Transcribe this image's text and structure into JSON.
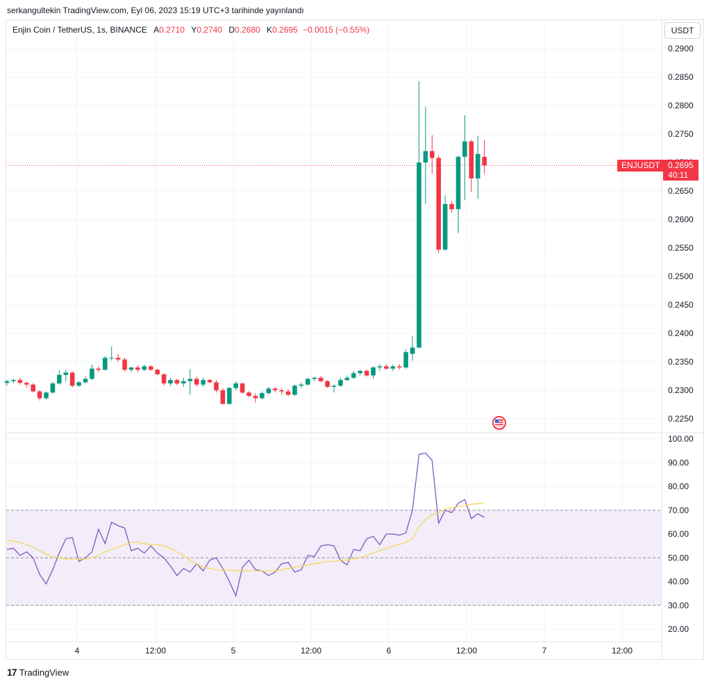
{
  "header": {
    "published": "serkangultekin TradingView.com, Eyl 06, 2023 15:19 UTC+3 tarihinde yayınlandı"
  },
  "legend": {
    "symbol": "Enjin Coin / TetherUS, 1s, BINANCE",
    "a_label": "A",
    "a_value": "0.2710",
    "y_label": "Y",
    "y_value": "0.2740",
    "d_label": "D",
    "d_value": "0.2680",
    "k_label": "K",
    "k_value": "0.2695",
    "change": "−0.0015 (−0.55%)"
  },
  "currency_button": "USDT",
  "price_tag": {
    "symbol": "ENJUSDT",
    "price": "0.2695",
    "countdown": "40:11"
  },
  "footer": {
    "brand": "TradingView",
    "mark": "17"
  },
  "colors": {
    "up": "#089981",
    "down": "#f23645",
    "rsi": "#7e57c2",
    "rsi_ma": "#f7d95c",
    "band": "#ede7f6"
  },
  "chart_data": [
    {
      "type": "candlestick",
      "title": "Enjin Coin / TetherUS, 1s, BINANCE",
      "ylim": [
        0.2225,
        0.2925
      ],
      "y_ticks": [
        "0.2900",
        "0.2850",
        "0.2800",
        "0.2750",
        "0.2700",
        "0.2650",
        "0.2600",
        "0.2550",
        "0.2500",
        "0.2450",
        "0.2400",
        "0.2350",
        "0.2300",
        "0.2250"
      ],
      "x_ticks": [
        "4",
        "12:00",
        "5",
        "12:00",
        "6",
        "12:00",
        "7",
        "12:00"
      ],
      "last_price": 0.2695,
      "candles": [
        {
          "o": 0.2313,
          "h": 0.2318,
          "l": 0.2308,
          "c": 0.2316
        },
        {
          "o": 0.2316,
          "h": 0.232,
          "l": 0.2312,
          "c": 0.2318
        },
        {
          "o": 0.2318,
          "h": 0.2322,
          "l": 0.231,
          "c": 0.2313
        },
        {
          "o": 0.2313,
          "h": 0.2316,
          "l": 0.2305,
          "c": 0.231
        },
        {
          "o": 0.231,
          "h": 0.2312,
          "l": 0.2296,
          "c": 0.2298
        },
        {
          "o": 0.2298,
          "h": 0.23,
          "l": 0.2282,
          "c": 0.2286
        },
        {
          "o": 0.2286,
          "h": 0.2298,
          "l": 0.2284,
          "c": 0.2296
        },
        {
          "o": 0.2296,
          "h": 0.2315,
          "l": 0.2294,
          "c": 0.2312
        },
        {
          "o": 0.2312,
          "h": 0.2335,
          "l": 0.231,
          "c": 0.2327
        },
        {
          "o": 0.2327,
          "h": 0.2336,
          "l": 0.2315,
          "c": 0.2331
        },
        {
          "o": 0.2331,
          "h": 0.2333,
          "l": 0.2305,
          "c": 0.2308
        },
        {
          "o": 0.2308,
          "h": 0.2316,
          "l": 0.2306,
          "c": 0.2314
        },
        {
          "o": 0.2314,
          "h": 0.2325,
          "l": 0.2312,
          "c": 0.232
        },
        {
          "o": 0.232,
          "h": 0.2345,
          "l": 0.2318,
          "c": 0.2338
        },
        {
          "o": 0.2338,
          "h": 0.2342,
          "l": 0.2332,
          "c": 0.2336
        },
        {
          "o": 0.2336,
          "h": 0.236,
          "l": 0.2335,
          "c": 0.2357
        },
        {
          "o": 0.2357,
          "h": 0.2377,
          "l": 0.2352,
          "c": 0.2357
        },
        {
          "o": 0.2357,
          "h": 0.2364,
          "l": 0.235,
          "c": 0.2354
        },
        {
          "o": 0.2354,
          "h": 0.2357,
          "l": 0.2333,
          "c": 0.2336
        },
        {
          "o": 0.2336,
          "h": 0.2341,
          "l": 0.2332,
          "c": 0.234
        },
        {
          "o": 0.234,
          "h": 0.2344,
          "l": 0.2332,
          "c": 0.2336
        },
        {
          "o": 0.2336,
          "h": 0.2345,
          "l": 0.2334,
          "c": 0.2342
        },
        {
          "o": 0.2342,
          "h": 0.2344,
          "l": 0.2334,
          "c": 0.2336
        },
        {
          "o": 0.2336,
          "h": 0.2338,
          "l": 0.2326,
          "c": 0.2328
        },
        {
          "o": 0.2328,
          "h": 0.233,
          "l": 0.2308,
          "c": 0.2312
        },
        {
          "o": 0.2312,
          "h": 0.2322,
          "l": 0.2308,
          "c": 0.2318
        },
        {
          "o": 0.2318,
          "h": 0.232,
          "l": 0.2309,
          "c": 0.2312
        },
        {
          "o": 0.2312,
          "h": 0.2322,
          "l": 0.2306,
          "c": 0.2316
        },
        {
          "o": 0.2316,
          "h": 0.2337,
          "l": 0.2292,
          "c": 0.232
        },
        {
          "o": 0.232,
          "h": 0.2324,
          "l": 0.2306,
          "c": 0.231
        },
        {
          "o": 0.231,
          "h": 0.2322,
          "l": 0.2306,
          "c": 0.2318
        },
        {
          "o": 0.2318,
          "h": 0.232,
          "l": 0.2312,
          "c": 0.2314
        },
        {
          "o": 0.2314,
          "h": 0.2318,
          "l": 0.2296,
          "c": 0.23
        },
        {
          "o": 0.23,
          "h": 0.2304,
          "l": 0.2275,
          "c": 0.2276
        },
        {
          "o": 0.2276,
          "h": 0.2306,
          "l": 0.2275,
          "c": 0.2304
        },
        {
          "o": 0.2304,
          "h": 0.2316,
          "l": 0.23,
          "c": 0.2312
        },
        {
          "o": 0.2312,
          "h": 0.2313,
          "l": 0.2294,
          "c": 0.2296
        },
        {
          "o": 0.2296,
          "h": 0.2298,
          "l": 0.2288,
          "c": 0.229
        },
        {
          "o": 0.229,
          "h": 0.2295,
          "l": 0.2278,
          "c": 0.2286
        },
        {
          "o": 0.2286,
          "h": 0.2298,
          "l": 0.2284,
          "c": 0.2295
        },
        {
          "o": 0.2295,
          "h": 0.2306,
          "l": 0.2292,
          "c": 0.2303
        },
        {
          "o": 0.2303,
          "h": 0.2306,
          "l": 0.2296,
          "c": 0.23
        },
        {
          "o": 0.23,
          "h": 0.2304,
          "l": 0.2292,
          "c": 0.2298
        },
        {
          "o": 0.2298,
          "h": 0.2302,
          "l": 0.229,
          "c": 0.2292
        },
        {
          "o": 0.2292,
          "h": 0.231,
          "l": 0.229,
          "c": 0.2308
        },
        {
          "o": 0.2308,
          "h": 0.2314,
          "l": 0.2304,
          "c": 0.231
        },
        {
          "o": 0.231,
          "h": 0.2322,
          "l": 0.2308,
          "c": 0.232
        },
        {
          "o": 0.232,
          "h": 0.2324,
          "l": 0.2316,
          "c": 0.2322
        },
        {
          "o": 0.2322,
          "h": 0.2325,
          "l": 0.2314,
          "c": 0.2316
        },
        {
          "o": 0.2316,
          "h": 0.2318,
          "l": 0.2304,
          "c": 0.2306
        },
        {
          "o": 0.2306,
          "h": 0.231,
          "l": 0.2296,
          "c": 0.2308
        },
        {
          "o": 0.2308,
          "h": 0.2322,
          "l": 0.2306,
          "c": 0.2318
        },
        {
          "o": 0.2318,
          "h": 0.2326,
          "l": 0.2316,
          "c": 0.2322
        },
        {
          "o": 0.2322,
          "h": 0.2334,
          "l": 0.232,
          "c": 0.233
        },
        {
          "o": 0.233,
          "h": 0.2336,
          "l": 0.2326,
          "c": 0.2334
        },
        {
          "o": 0.2334,
          "h": 0.2337,
          "l": 0.2324,
          "c": 0.2326
        },
        {
          "o": 0.2326,
          "h": 0.2342,
          "l": 0.232,
          "c": 0.234
        },
        {
          "o": 0.234,
          "h": 0.2346,
          "l": 0.2334,
          "c": 0.2342
        },
        {
          "o": 0.2342,
          "h": 0.2346,
          "l": 0.2336,
          "c": 0.2338
        },
        {
          "o": 0.2338,
          "h": 0.2345,
          "l": 0.2334,
          "c": 0.2342
        },
        {
          "o": 0.2342,
          "h": 0.2346,
          "l": 0.2336,
          "c": 0.234
        },
        {
          "o": 0.234,
          "h": 0.2372,
          "l": 0.2338,
          "c": 0.2367
        },
        {
          "o": 0.2364,
          "h": 0.2395,
          "l": 0.2352,
          "c": 0.2375
        },
        {
          "o": 0.2375,
          "h": 0.2843,
          "l": 0.2374,
          "c": 0.27
        },
        {
          "o": 0.27,
          "h": 0.2798,
          "l": 0.2627,
          "c": 0.272
        },
        {
          "o": 0.272,
          "h": 0.2748,
          "l": 0.268,
          "c": 0.2708
        },
        {
          "o": 0.2708,
          "h": 0.2712,
          "l": 0.2541,
          "c": 0.2547
        },
        {
          "o": 0.2547,
          "h": 0.2642,
          "l": 0.2545,
          "c": 0.2627
        },
        {
          "o": 0.2627,
          "h": 0.2632,
          "l": 0.2612,
          "c": 0.2618
        },
        {
          "o": 0.2618,
          "h": 0.2712,
          "l": 0.2576,
          "c": 0.271
        },
        {
          "o": 0.271,
          "h": 0.2783,
          "l": 0.2634,
          "c": 0.2737
        },
        {
          "o": 0.2737,
          "h": 0.274,
          "l": 0.2648,
          "c": 0.2672
        },
        {
          "o": 0.2672,
          "h": 0.2747,
          "l": 0.2636,
          "c": 0.2715
        },
        {
          "o": 0.271,
          "h": 0.274,
          "l": 0.268,
          "c": 0.2695
        }
      ]
    },
    {
      "type": "line",
      "title": "RSI",
      "ylim": [
        15,
        102
      ],
      "y_ticks": [
        "100.00",
        "90.00",
        "80.00",
        "70.00",
        "60.00",
        "50.00",
        "40.00",
        "30.00",
        "20.00"
      ],
      "bands": [
        70,
        50,
        30
      ],
      "series": [
        {
          "role": "rsi",
          "values": [
            53.5,
            54,
            51,
            52.5,
            50,
            43,
            39,
            45,
            52,
            58,
            58.5,
            48.5,
            50,
            52.5,
            62,
            56,
            65,
            63.5,
            62.5,
            53,
            54,
            52,
            55,
            52,
            50,
            46.5,
            42.5,
            45.5,
            44,
            47.5,
            44.5,
            49,
            50,
            45.5,
            40,
            34,
            46,
            49,
            45,
            44.5,
            42.5,
            44,
            47.5,
            48,
            44,
            45,
            51,
            50.5,
            55,
            55.5,
            55,
            49,
            47,
            53.5,
            53,
            58,
            59,
            55.5,
            60,
            60,
            59.5,
            60.5,
            70,
            93.5,
            94,
            91,
            64.5,
            70,
            69,
            73,
            74.5,
            66.5,
            68.5,
            67
          ]
        },
        {
          "role": "ma",
          "values": [
            57.5,
            57,
            56.5,
            55.5,
            54.5,
            53,
            51.5,
            50.5,
            50,
            49.5,
            49.5,
            49.5,
            49.5,
            50,
            51,
            52.5,
            53.5,
            54.5,
            55.5,
            56.5,
            56.5,
            56,
            55.5,
            55.5,
            55,
            54,
            52.5,
            51,
            49,
            47.5,
            46,
            45.5,
            45,
            44.8,
            44.8,
            44.6,
            44.6,
            44.5,
            44.5,
            44.5,
            44.5,
            44.5,
            45,
            45.5,
            46,
            46.5,
            47,
            47.5,
            48,
            48.5,
            48.5,
            49,
            49,
            49.5,
            50,
            51,
            52,
            53,
            54,
            55,
            55.5,
            56.5,
            58,
            63,
            66,
            68,
            69,
            70.5,
            71,
            71.5,
            72,
            72.5,
            72.8,
            73
          ]
        }
      ]
    }
  ]
}
